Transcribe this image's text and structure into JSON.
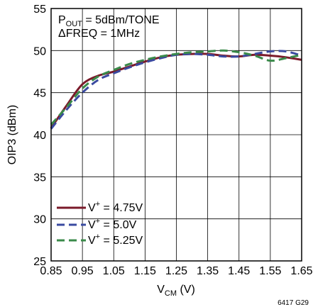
{
  "chart_data": {
    "type": "line",
    "xlabel_main": "V",
    "xlabel_sub": "CM",
    "xlabel_unit": " (V)",
    "ylabel": "OIP3 (dBm)",
    "xlim": [
      0.85,
      1.65
    ],
    "ylim": [
      25,
      55
    ],
    "x_ticks": [
      "0.85",
      "0.95",
      "1.05",
      "1.15",
      "1.25",
      "1.35",
      "1.45",
      "1.55",
      "1.65"
    ],
    "y_ticks": [
      "25",
      "30",
      "35",
      "40",
      "45",
      "50",
      "55"
    ],
    "grid": true,
    "annotations": {
      "line1_main": "P",
      "line1_sub": "OUT",
      "line1_rest": " = 5dBm/TONE",
      "line2": "ΔFREQ = 1MHz"
    },
    "figure_id": "6417 G29",
    "legend_position": "bottom-left",
    "series": [
      {
        "name_main": "V",
        "name_sup": "+",
        "name_rest": " = 4.75V",
        "color": "#7a1a2a",
        "dash": "solid",
        "x": [
          0.85,
          0.9,
          0.95,
          1.0,
          1.05,
          1.1,
          1.15,
          1.2,
          1.25,
          1.3,
          1.35,
          1.4,
          1.45,
          1.5,
          1.55,
          1.6,
          1.65
        ],
        "y": [
          40.8,
          43.5,
          46.0,
          47.0,
          47.5,
          48.1,
          48.7,
          49.2,
          49.5,
          49.6,
          49.6,
          49.4,
          49.3,
          49.5,
          49.4,
          49.2,
          48.9
        ]
      },
      {
        "name_main": "V",
        "name_sup": "+",
        "name_rest": " = 5.0V",
        "color": "#3a4aa0",
        "dash": "dashed",
        "x": [
          0.85,
          0.9,
          0.95,
          1.0,
          1.05,
          1.1,
          1.15,
          1.2,
          1.25,
          1.3,
          1.35,
          1.4,
          1.45,
          1.5,
          1.55,
          1.6,
          1.65
        ],
        "y": [
          40.7,
          43.0,
          45.0,
          46.5,
          47.3,
          48.0,
          48.6,
          49.1,
          49.5,
          49.6,
          49.5,
          49.3,
          49.3,
          49.6,
          49.9,
          49.9,
          49.4
        ]
      },
      {
        "name_main": "V",
        "name_sup": "+",
        "name_rest": " = 5.25V",
        "color": "#3a8a4a",
        "dash": "dashed",
        "x": [
          0.85,
          0.9,
          0.95,
          1.0,
          1.05,
          1.1,
          1.15,
          1.2,
          1.25,
          1.3,
          1.35,
          1.4,
          1.45,
          1.5,
          1.55,
          1.6,
          1.65
        ],
        "y": [
          41.2,
          43.3,
          45.5,
          46.9,
          47.7,
          48.4,
          48.9,
          49.3,
          49.6,
          49.8,
          49.9,
          50.0,
          49.8,
          49.4,
          48.8,
          49.1,
          49.5
        ]
      }
    ]
  }
}
